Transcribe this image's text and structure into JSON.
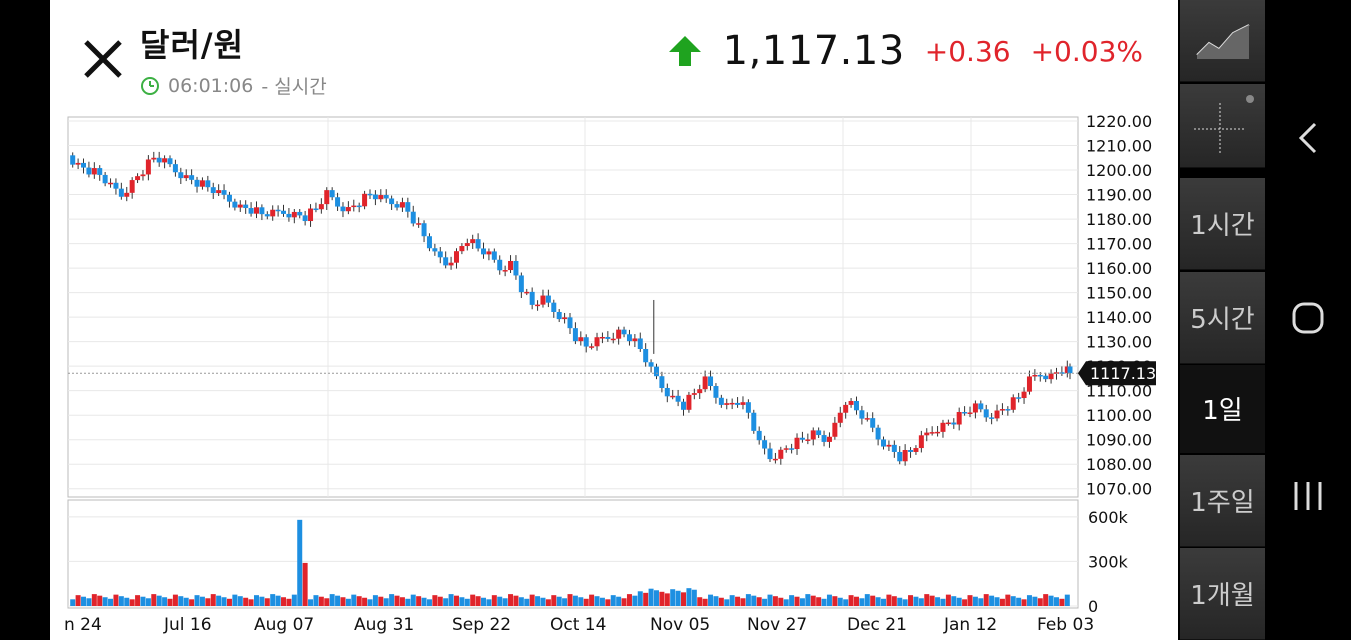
{
  "header": {
    "title": "달러/원",
    "time": "06:01:06",
    "mode": "- 실시간",
    "price": "1,117.13",
    "change": "+0.36",
    "change_pct": "+0.03%",
    "up_color": "#1fa31f",
    "down_color": "#e0242b"
  },
  "sidebar": {
    "items": [
      {
        "label": "1시간"
      },
      {
        "label": "5시간"
      },
      {
        "label": "1일"
      },
      {
        "label": "1주일"
      },
      {
        "label": "1개월"
      }
    ]
  },
  "chart_data": {
    "type": "candlestick",
    "y_ticks": [
      "1220.00",
      "1210.00",
      "1200.00",
      "1190.00",
      "1180.00",
      "1170.00",
      "1160.00",
      "1150.00",
      "1140.00",
      "1130.00",
      "1120.00",
      "1110.00",
      "1100.00",
      "1090.00",
      "1080.00",
      "1070.00"
    ],
    "ylim": [
      1065,
      1220
    ],
    "current_price_label": "1117.13",
    "current_price": 1117.13,
    "x_ticks": [
      "n 24",
      "Jul 16",
      "Aug 07",
      "Aug 31",
      "Sep 22",
      "Oct 14",
      "Nov 05",
      "Nov 27",
      "Dec 21",
      "Jan 12",
      "Feb 03"
    ],
    "close_path": [
      [
        0,
        1206
      ],
      [
        4,
        1202
      ],
      [
        8,
        1200
      ],
      [
        12,
        1198
      ],
      [
        16,
        1193
      ],
      [
        20,
        1190
      ],
      [
        24,
        1195
      ],
      [
        28,
        1200
      ],
      [
        32,
        1205
      ],
      [
        36,
        1203
      ],
      [
        40,
        1200
      ],
      [
        44,
        1197
      ],
      [
        48,
        1195
      ],
      [
        52,
        1193
      ],
      [
        56,
        1190
      ],
      [
        60,
        1188
      ],
      [
        64,
        1185
      ],
      [
        68,
        1184
      ],
      [
        72,
        1182
      ],
      [
        76,
        1182
      ],
      [
        80,
        1183
      ],
      [
        84,
        1182
      ],
      [
        88,
        1181
      ],
      [
        92,
        1184
      ],
      [
        96,
        1190
      ],
      [
        100,
        1186
      ],
      [
        104,
        1184
      ],
      [
        108,
        1187
      ],
      [
        112,
        1190
      ],
      [
        116,
        1188
      ],
      [
        120,
        1187
      ],
      [
        124,
        1186
      ],
      [
        128,
        1180
      ],
      [
        132,
        1173
      ],
      [
        136,
        1165
      ],
      [
        140,
        1162
      ],
      [
        144,
        1166
      ],
      [
        148,
        1172
      ],
      [
        152,
        1168
      ],
      [
        156,
        1165
      ],
      [
        160,
        1160
      ],
      [
        164,
        1162
      ],
      [
        168,
        1152
      ],
      [
        172,
        1145
      ],
      [
        176,
        1147
      ],
      [
        180,
        1143
      ],
      [
        184,
        1139
      ],
      [
        188,
        1132
      ],
      [
        192,
        1128
      ],
      [
        196,
        1130
      ],
      [
        200,
        1132
      ],
      [
        204,
        1134
      ],
      [
        208,
        1132
      ],
      [
        212,
        1127
      ],
      [
        216,
        1118
      ],
      [
        220,
        1112
      ],
      [
        224,
        1107
      ],
      [
        228,
        1104
      ],
      [
        232,
        1109
      ],
      [
        236,
        1114
      ],
      [
        240,
        1108
      ],
      [
        244,
        1104
      ],
      [
        248,
        1106
      ],
      [
        252,
        1101
      ],
      [
        256,
        1088
      ],
      [
        260,
        1083
      ],
      [
        264,
        1085
      ],
      [
        268,
        1088
      ],
      [
        272,
        1090
      ],
      [
        276,
        1092
      ],
      [
        280,
        1090
      ],
      [
        284,
        1096
      ],
      [
        288,
        1106
      ],
      [
        292,
        1102
      ],
      [
        296,
        1097
      ],
      [
        300,
        1091
      ],
      [
        304,
        1087
      ],
      [
        308,
        1083
      ],
      [
        312,
        1085
      ],
      [
        316,
        1090
      ],
      [
        320,
        1094
      ],
      [
        324,
        1096
      ],
      [
        328,
        1098
      ],
      [
        332,
        1101
      ],
      [
        336,
        1103
      ],
      [
        340,
        1100
      ],
      [
        344,
        1101
      ],
      [
        348,
        1104
      ],
      [
        352,
        1107
      ],
      [
        356,
        1114
      ],
      [
        360,
        1117
      ],
      [
        364,
        1116
      ],
      [
        368,
        1119
      ],
      [
        370,
        1117.13
      ]
    ],
    "volume_ticks": [
      "600k",
      "300k",
      "0"
    ],
    "volume_spikes": [
      [
        84,
        580000
      ],
      [
        86,
        290000
      ]
    ]
  }
}
